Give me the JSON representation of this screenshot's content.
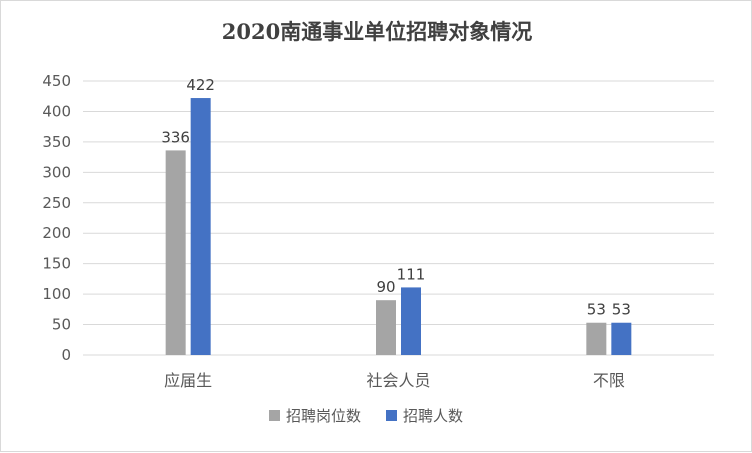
{
  "chart_data": {
    "type": "bar",
    "title": "2020南通事业单位招聘对象情况",
    "categories": [
      "应届生",
      "社会人员",
      "不限"
    ],
    "series": [
      {
        "name": "招聘岗位数",
        "values": [
          336,
          90,
          53
        ],
        "color": "#a5a5a5"
      },
      {
        "name": "招聘人数",
        "values": [
          422,
          111,
          53
        ],
        "color": "#4472c4"
      }
    ],
    "ylim": [
      0,
      450
    ],
    "yticks": [
      0,
      50,
      100,
      150,
      200,
      250,
      300,
      350,
      400,
      450
    ],
    "grid": true,
    "legend": "bottom",
    "data_labels": true
  }
}
